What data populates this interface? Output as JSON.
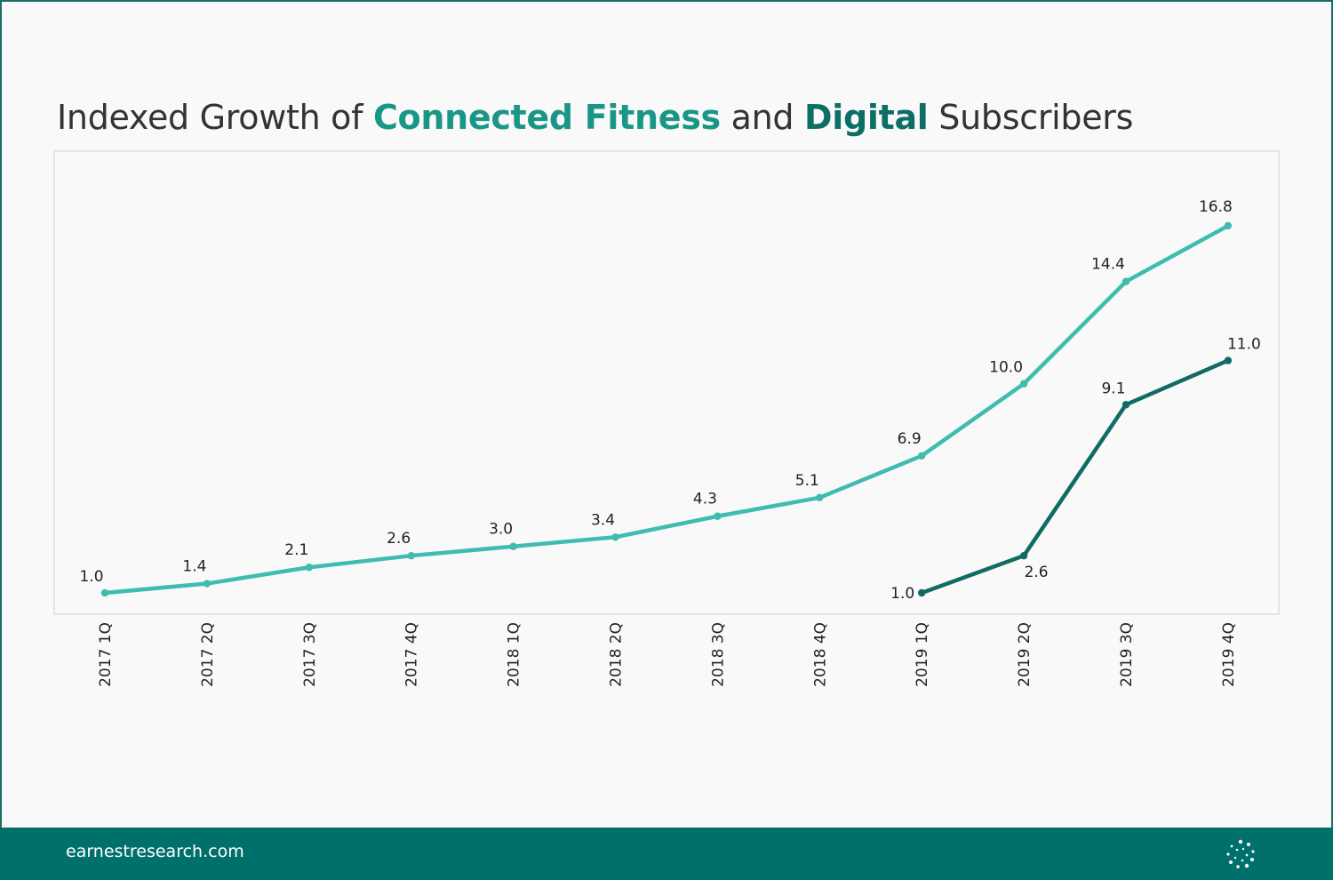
{
  "title": {
    "part1": "Indexed Growth of ",
    "highlight1": "Connected Fitness",
    "part2": " and ",
    "highlight2": "Digital",
    "part3": " Subscribers"
  },
  "footer": {
    "website": "earnestresearch.com",
    "logo_icon": "dotted-circle-logo-icon"
  },
  "colors": {
    "connected_fitness": "#3fbcb0",
    "digital": "#0f6b63",
    "footer_bg": "#00706a"
  },
  "chart_data": {
    "type": "line",
    "x": [
      "2017 1Q",
      "2017 2Q",
      "2017 3Q",
      "2017 4Q",
      "2018 1Q",
      "2018 2Q",
      "2018 3Q",
      "2018 4Q",
      "2019 1Q",
      "2019 2Q",
      "2019 3Q",
      "2019 4Q"
    ],
    "series": [
      {
        "name": "Connected Fitness",
        "values": [
          1.0,
          1.4,
          2.1,
          2.6,
          3.0,
          3.4,
          4.3,
          5.1,
          6.9,
          10.0,
          14.4,
          16.8
        ],
        "labels": [
          "1.0",
          "1.4",
          "2.1",
          "2.6",
          "3.0",
          "3.4",
          "4.3",
          "5.1",
          "6.9",
          "10.0",
          "14.4",
          "16.8"
        ]
      },
      {
        "name": "Digital",
        "values": [
          null,
          null,
          null,
          null,
          null,
          null,
          null,
          null,
          1.0,
          2.6,
          9.1,
          11.0
        ],
        "labels": [
          null,
          null,
          null,
          null,
          null,
          null,
          null,
          null,
          "1.0",
          "2.6",
          "9.1",
          "11.0"
        ]
      }
    ],
    "xlabel": "",
    "ylabel": "",
    "ylim": [
      1.0,
      16.8
    ],
    "grid": false,
    "legend": "none",
    "x_tick_rotation": "vertical"
  }
}
